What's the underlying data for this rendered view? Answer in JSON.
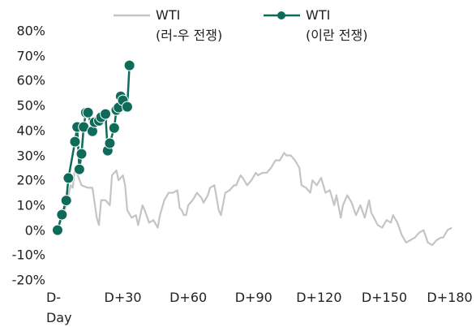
{
  "chart_data": {
    "type": "line",
    "xlim": [
      -2,
      185
    ],
    "xticks": [
      {
        "value": 0,
        "label": "D-Day"
      },
      {
        "value": 30,
        "label": "D+30"
      },
      {
        "value": 60,
        "label": "D+60"
      },
      {
        "value": 90,
        "label": "D+90"
      },
      {
        "value": 120,
        "label": "D+120"
      },
      {
        "value": 150,
        "label": "D+150"
      },
      {
        "value": 180,
        "label": "D+180"
      }
    ],
    "ylim": [
      -20,
      80
    ],
    "yticks": [
      {
        "value": -20,
        "label": "-20%"
      },
      {
        "value": -10,
        "label": "-10%"
      },
      {
        "value": 0,
        "label": "0%"
      },
      {
        "value": 10,
        "label": "10%"
      },
      {
        "value": 20,
        "label": "20%"
      },
      {
        "value": 30,
        "label": "30%"
      },
      {
        "value": 40,
        "label": "40%"
      },
      {
        "value": 50,
        "label": "50%"
      },
      {
        "value": 60,
        "label": "60%"
      },
      {
        "value": 70,
        "label": "70%"
      },
      {
        "value": 80,
        "label": "80%"
      }
    ],
    "grid": false,
    "series": [
      {
        "name": "WTI\n(러-우 전쟁)",
        "color": "#c4c4c4",
        "markers": false,
        "x": [
          0,
          2,
          4,
          6,
          7,
          8,
          11,
          14,
          16,
          18,
          19,
          20,
          22,
          24,
          25,
          26,
          27,
          28,
          30,
          31,
          32,
          34,
          36,
          37,
          39,
          40,
          42,
          44,
          46,
          47,
          49,
          51,
          53,
          55,
          56,
          57,
          58,
          59,
          60,
          62,
          64,
          66,
          67,
          69,
          70,
          72,
          74,
          75,
          77,
          79,
          81,
          82,
          84,
          85,
          87,
          89,
          91,
          92,
          94,
          96,
          98,
          100,
          102,
          104,
          105,
          107,
          109,
          111,
          112,
          114,
          116,
          117,
          119,
          121,
          123,
          125,
          127,
          128,
          130,
          131,
          133,
          135,
          137,
          139,
          141,
          143,
          144,
          147,
          149,
          151,
          153,
          154,
          156,
          158,
          160,
          162,
          164,
          166,
          168,
          170,
          172,
          174,
          176,
          177,
          179,
          181
        ],
        "values": [
          0,
          5,
          10,
          18,
          17,
          25,
          18,
          17,
          17,
          5,
          2,
          12,
          12,
          10,
          22,
          23,
          24,
          20,
          22,
          18,
          8,
          5,
          6,
          2,
          10,
          8,
          3,
          4,
          1,
          6,
          12,
          15,
          15,
          16,
          9,
          8,
          6,
          6,
          10,
          12,
          15,
          13,
          11,
          14,
          17,
          18,
          8,
          6,
          15,
          16,
          18,
          18,
          22,
          21,
          18,
          20,
          23,
          22,
          23,
          23,
          25,
          28,
          28,
          31,
          30,
          30,
          28,
          25,
          18,
          17,
          15,
          20,
          18,
          21,
          15,
          16,
          10,
          14,
          5,
          10,
          14,
          11,
          6,
          10,
          5,
          12,
          7,
          2,
          1,
          4,
          3,
          6,
          3,
          -2,
          -5,
          -4,
          -3,
          -1,
          0,
          -5,
          -6,
          -4,
          -3,
          -3,
          0,
          1
        ]
      },
      {
        "name": "WTI\n(이란 전쟁)",
        "color": "#0e6b5a",
        "markers": true,
        "x": [
          0,
          2,
          4,
          5,
          8,
          9,
          10,
          11,
          12,
          13,
          14,
          16,
          17,
          19,
          20,
          22,
          23,
          24,
          26,
          27,
          28,
          29,
          30,
          32,
          33
        ],
        "values": [
          0,
          6.2,
          11.9,
          20.9,
          35.5,
          41.4,
          24.4,
          30.6,
          41.4,
          47.2,
          47.2,
          39.7,
          43.3,
          43.9,
          45.3,
          46.6,
          31.9,
          34.9,
          41,
          48.2,
          49.2,
          53.7,
          52.1,
          49.5,
          66.1
        ]
      }
    ]
  }
}
